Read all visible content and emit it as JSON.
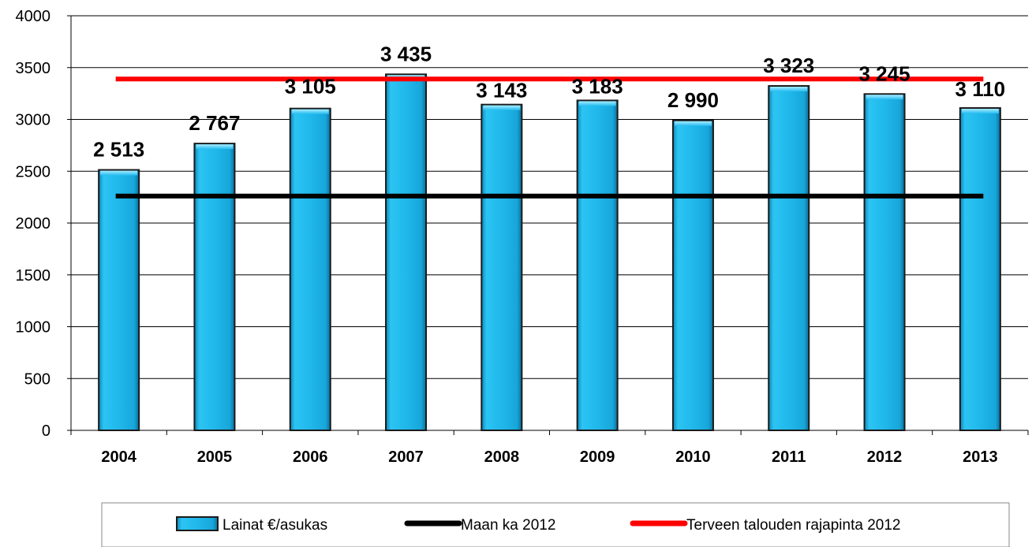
{
  "chart_data": {
    "type": "bar",
    "categories": [
      "2004",
      "2005",
      "2006",
      "2007",
      "2008",
      "2009",
      "2010",
      "2011",
      "2012",
      "2013"
    ],
    "series": [
      {
        "name": "Lainat €/asukas",
        "type": "bar",
        "values": [
          2513,
          2767,
          3105,
          3435,
          3143,
          3183,
          2990,
          3323,
          3245,
          3110
        ],
        "labels": [
          "2 513",
          "2 767",
          "3 105",
          "3 435",
          "3 143",
          "3 183",
          "2 990",
          "3 323",
          "3 245",
          "3 110"
        ],
        "color": "#1fb4e8"
      },
      {
        "name": "Maan ka 2012",
        "type": "line",
        "value": 2260,
        "color": "#000000"
      },
      {
        "name": "Terveen talouden rajapinta 2012",
        "type": "line",
        "value": 3390,
        "color": "#ff0000"
      }
    ],
    "ylim": [
      0,
      4000
    ],
    "yticks": [
      "0",
      "500",
      "1000",
      "1500",
      "2000",
      "2500",
      "3000",
      "3500",
      "4000"
    ],
    "grid": "horizontal",
    "legend_position": "bottom",
    "title": "",
    "xlabel": "",
    "ylabel": ""
  }
}
